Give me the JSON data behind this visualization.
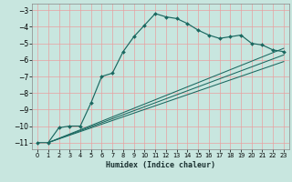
{
  "xlabel": "Humidex (Indice chaleur)",
  "background_color": "#c8e6df",
  "grid_color": "#e8a0a0",
  "line_color": "#1a6860",
  "xlim": [
    -0.5,
    23.5
  ],
  "ylim": [
    -11.4,
    -2.6
  ],
  "yticks": [
    -11,
    -10,
    -9,
    -8,
    -7,
    -6,
    -5,
    -4,
    -3
  ],
  "xticks": [
    0,
    1,
    2,
    3,
    4,
    5,
    6,
    7,
    8,
    9,
    10,
    11,
    12,
    13,
    14,
    15,
    16,
    17,
    18,
    19,
    20,
    21,
    22,
    23
  ],
  "main_series": {
    "x": [
      0,
      1,
      2,
      3,
      4,
      5,
      6,
      7,
      8,
      9,
      10,
      11,
      12,
      13,
      14,
      15,
      16,
      17,
      18,
      19,
      20,
      21,
      22,
      23
    ],
    "y": [
      -11.0,
      -11.0,
      -10.1,
      -10.0,
      -10.0,
      -8.6,
      -7.0,
      -6.8,
      -5.5,
      -4.6,
      -3.9,
      -3.2,
      -3.4,
      -3.5,
      -3.8,
      -4.2,
      -4.5,
      -4.7,
      -4.6,
      -4.5,
      -5.0,
      -5.1,
      -5.4,
      -5.5
    ]
  },
  "extra_lines": [
    {
      "x": [
        1,
        23
      ],
      "y": [
        -11.0,
        -5.3
      ]
    },
    {
      "x": [
        1,
        23
      ],
      "y": [
        -11.0,
        -5.7
      ]
    },
    {
      "x": [
        1,
        23
      ],
      "y": [
        -11.0,
        -6.1
      ]
    }
  ]
}
